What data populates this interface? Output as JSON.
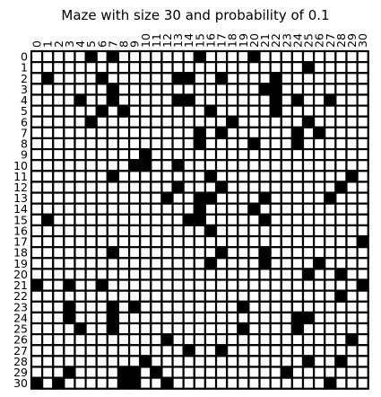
{
  "title": "Maze with size 30 and probability of 0.1",
  "maze": {
    "size": 31,
    "cell_values": {
      "0": "open",
      "1": "wall"
    },
    "grid": [
      "0000010100000001000010000000000",
      "0000000000000000000000000100000",
      "0100001000000110010000100000000",
      "0000000100000000000001100000000",
      "0000100100000110000000101001000",
      "0000001010000000100000100000000",
      "0000010000000000001000000100000",
      "0000000000000001010000001010000",
      "0000000000000001000010001000000",
      "0000000000100000000000000000000",
      "0000000001100100000000000000000",
      "0000000100000000100000000000010",
      "0000000000000100010000000000100",
      "0000000000001001100001000001000",
      "0000000000000001000010000000000",
      "0100000000000011000001000000000",
      "0000000000000000100000000000000",
      "0000000000000000000000000000001",
      "0000000100000000010001000000000",
      "0000000000000000100001000010000",
      "0000000000000000000000000100100",
      "1001001000000000000000000000001",
      "0000000000000000000000000000100",
      "0001000101000000000100000000000",
      "0001000100000000000000001100000",
      "0000100100000000000100001000000",
      "0000000000001000000000000000010",
      "0000000000000010010000000000000",
      "0000000000100000000000000100100",
      "0001000011010000000000010000000",
      "1010000011001000000000000001000"
    ]
  },
  "axes": {
    "x_ticks": [
      "0",
      "1",
      "2",
      "3",
      "4",
      "5",
      "6",
      "7",
      "8",
      "9",
      "10",
      "11",
      "12",
      "13",
      "14",
      "15",
      "16",
      "17",
      "18",
      "19",
      "20",
      "21",
      "22",
      "23",
      "24",
      "25",
      "26",
      "27",
      "28",
      "29",
      "30"
    ],
    "y_ticks": [
      "0",
      "1",
      "2",
      "3",
      "4",
      "5",
      "6",
      "7",
      "8",
      "9",
      "10",
      "11",
      "12",
      "13",
      "14",
      "15",
      "16",
      "17",
      "18",
      "19",
      "20",
      "21",
      "22",
      "23",
      "24",
      "25",
      "26",
      "27",
      "28",
      "29",
      "30"
    ]
  },
  "colors": {
    "wall": "#000000",
    "open": "#ffffff",
    "grid_line": "#000000"
  }
}
